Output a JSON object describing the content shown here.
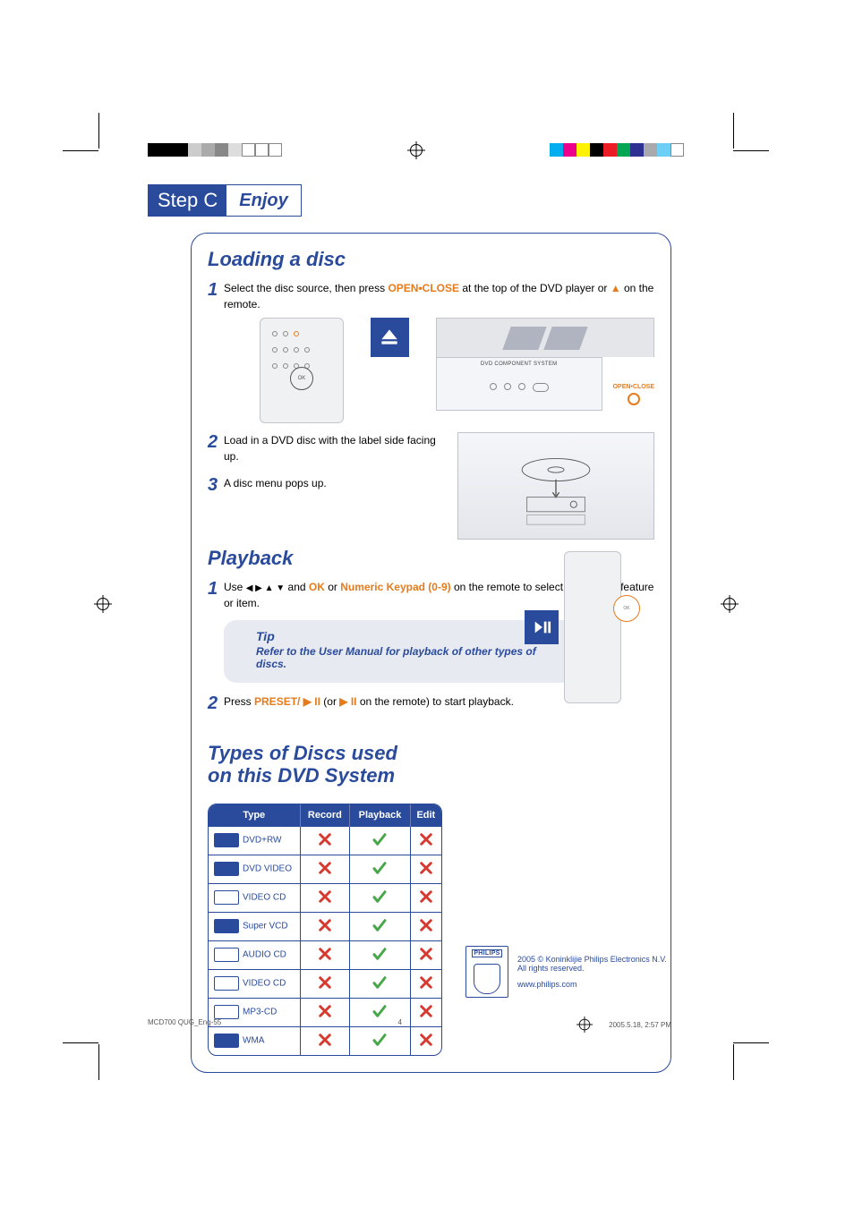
{
  "step_badge": {
    "label": "Step C",
    "title": "Enjoy"
  },
  "colors": {
    "brand_blue": "#2a4b9b",
    "accent_orange": "#e77b1c",
    "check_green": "#4aa64a",
    "x_red": "#d43a2f",
    "panel_bg": "#ffffff",
    "tip_bg": "#e8eaf2"
  },
  "crop_colors_top": [
    "#000000",
    "#000000",
    "#000000",
    "#cccccc",
    "#aaaaaa",
    "#888888",
    "#dddddd",
    "#ffffff",
    "#ffffff",
    "#ffffff"
  ],
  "crop_colors_top_right": [
    "#00aeef",
    "#ec008c",
    "#fff200",
    "#000000",
    "#ec1c24",
    "#00a651",
    "#2e3192",
    "#a7a9ac",
    "#6dcff6",
    "#ffffff"
  ],
  "sections": {
    "loading": {
      "heading": "Loading a disc",
      "step1_pre": "Select the disc source, then press ",
      "step1_cmd": "OPEN•CLOSE",
      "step1_mid": " at the top of the DVD player or ",
      "step1_post": " on the remote.",
      "player_label": "DVD COMPONENT SYSTEM",
      "openclose_cue": "OPEN•CLOSE",
      "step2": "Load in a DVD disc with the label side facing up.",
      "step3": "A disc menu pops up."
    },
    "playback": {
      "heading": "Playback",
      "step1_pre": "Use ",
      "step1_keys": "◀ ▶ ▲ ▼",
      "step1_mid1": " and ",
      "step1_ok": "OK",
      "step1_mid2": " or ",
      "step1_num": "Numeric Keypad (0-9)",
      "step1_post": " on the remote to select a playback feature or item.",
      "tip_title": "Tip",
      "tip_body": "Refer to the User Manual for playback of other types of discs.",
      "step2_pre": "Press ",
      "step2_cmd": "PRESET/ ▶ II",
      "step2_mid": " (or ",
      "step2_cmd2": "▶ II",
      "step2_post": " on the remote) to start playback."
    },
    "types": {
      "heading1": "Types of Discs used",
      "heading2": "on this DVD System",
      "columns": [
        "Type",
        "Record",
        "Playback",
        "Edit"
      ],
      "rows": [
        {
          "label": "DVD+RW",
          "logo_style": "solid",
          "record": false,
          "playback": true,
          "edit": false
        },
        {
          "label": "DVD VIDEO",
          "logo_style": "solid",
          "record": false,
          "playback": true,
          "edit": false
        },
        {
          "label": "VIDEO CD",
          "logo_style": "outline",
          "record": false,
          "playback": true,
          "edit": false
        },
        {
          "label": "Super VCD",
          "logo_style": "solid",
          "record": false,
          "playback": true,
          "edit": false
        },
        {
          "label": "AUDIO CD",
          "logo_style": "outline",
          "record": false,
          "playback": true,
          "edit": false
        },
        {
          "label": "VIDEO CD",
          "logo_style": "outline",
          "record": false,
          "playback": true,
          "edit": false
        },
        {
          "label": "MP3-CD",
          "logo_style": "outline",
          "record": false,
          "playback": true,
          "edit": false
        },
        {
          "label": "WMA",
          "logo_style": "solid",
          "record": false,
          "playback": true,
          "edit": false
        }
      ]
    }
  },
  "footer": {
    "brand": "PHILIPS",
    "copyright": "2005 © Koninklijie Philips Electronics N.V.",
    "rights": "All rights reserved.",
    "url": "www.philips.com"
  },
  "slug": {
    "left": "MCD700 QUG_Eng-55",
    "page": "4",
    "right": "2005.5.18, 2:57 PM"
  }
}
